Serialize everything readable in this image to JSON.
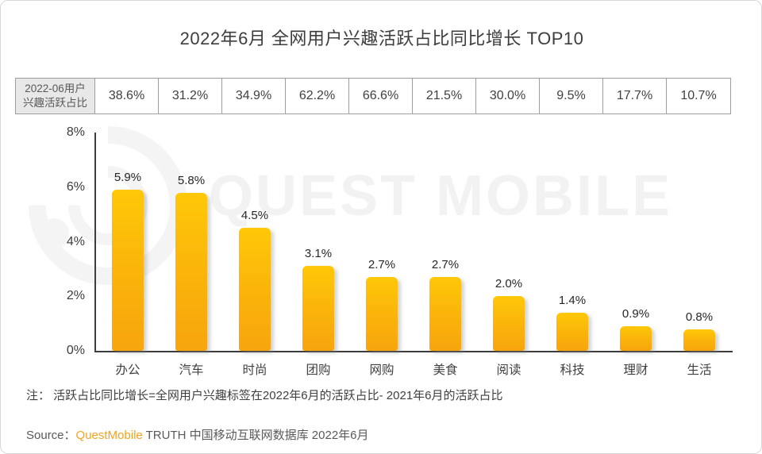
{
  "page": {
    "title": "2022年6月 全网用户兴趣活跃占比同比增长 TOP10"
  },
  "table": {
    "header_line1": "2022-06用户",
    "header_line2": "兴趣活跃占比",
    "values": [
      "38.6%",
      "31.2%",
      "34.9%",
      "62.2%",
      "66.6%",
      "21.5%",
      "30.0%",
      "9.5%",
      "17.7%",
      "10.7%"
    ]
  },
  "chart_data": {
    "type": "bar",
    "title": "2022年6月 全网用户兴趣活跃占比同比增长 TOP10",
    "categories": [
      "办公",
      "汽车",
      "时尚",
      "团购",
      "网购",
      "美食",
      "阅读",
      "科技",
      "理财",
      "生活"
    ],
    "values": [
      5.9,
      5.8,
      4.5,
      3.1,
      2.7,
      2.7,
      2.0,
      1.4,
      0.9,
      0.8
    ],
    "value_labels": [
      "5.9%",
      "5.8%",
      "4.5%",
      "3.1%",
      "2.7%",
      "2.7%",
      "2.0%",
      "1.4%",
      "0.9%",
      "0.8%"
    ],
    "xlabel": "",
    "ylabel": "",
    "ylim": [
      0,
      8
    ],
    "yticks": [
      "0%",
      "2%",
      "4%",
      "6%",
      "8%"
    ],
    "grid": false,
    "legend": "none",
    "bar_color_top": "#ffc808",
    "bar_color_bottom": "#f7a50d"
  },
  "watermark": {
    "text": "QUEST MOBILE"
  },
  "note": "注： 活跃占比同比增长=全网用户兴趣标签在2022年6月的活跃占比- 2021年6月的活跃占比",
  "source": {
    "label": "Source：",
    "brand": "QuestMobile",
    "rest": " TRUTH 中国移动互联网数据库 2022年6月",
    "brand_color": "#f7a21b"
  }
}
